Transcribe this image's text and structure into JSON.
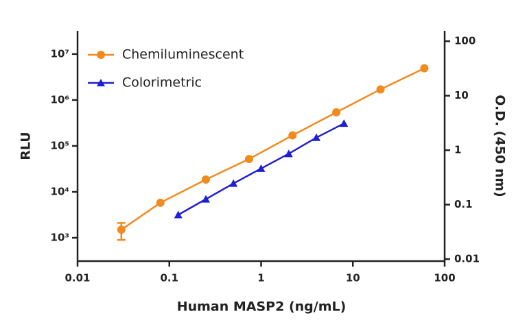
{
  "chart_data": {
    "type": "line",
    "log_scale": true,
    "x_label": "Human MASP2 (ng/mL)",
    "y_label": "RLU",
    "y2_label": "O.D. (450 nm)",
    "xlim": [
      0.01,
      100
    ],
    "xticks": [
      0.01,
      0.1,
      1,
      10,
      100
    ],
    "ylim": [
      311,
      32000000
    ],
    "yticks": [
      {
        "value": 1000,
        "label": "10³"
      },
      {
        "value": 10000,
        "label": "10⁴"
      },
      {
        "value": 100000,
        "label": "10⁵"
      },
      {
        "value": 1000000,
        "label": "10⁶"
      },
      {
        "value": 10000000,
        "label": "10⁷"
      }
    ],
    "y2lim": [
      0.0092,
      155
    ],
    "y2ticks": [
      0.01,
      0.1,
      1,
      10,
      100
    ],
    "legend": "upper left",
    "series": [
      {
        "name": "Chemiluminescent",
        "color": "#f28a1e",
        "marker": "circle",
        "x": [
          0.03,
          0.08,
          0.25,
          0.74,
          2.2,
          6.6,
          20,
          60
        ],
        "values": [
          1500,
          5800,
          18500,
          52000,
          170000,
          540000,
          1700000,
          4900000
        ],
        "errors": [
          600,
          null,
          null,
          null,
          null,
          null,
          null,
          null
        ]
      },
      {
        "name": "Colorimetric",
        "color": "#1f1fd6",
        "marker": "triangle",
        "axis": "y2",
        "x": [
          0.125,
          0.25,
          0.5,
          1,
          2,
          4,
          8
        ],
        "values": [
          0.065,
          0.126,
          0.245,
          0.46,
          0.86,
          1.7,
          3.1
        ]
      }
    ]
  }
}
